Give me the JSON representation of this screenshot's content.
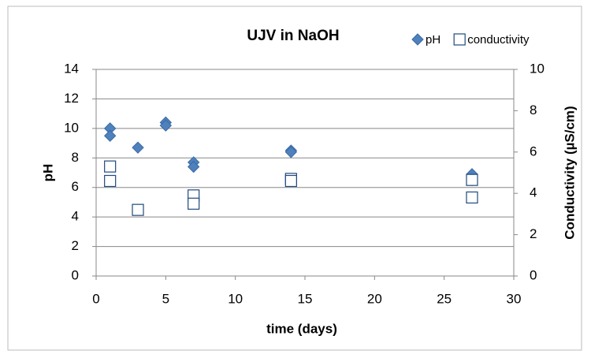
{
  "chart_data": {
    "type": "scatter",
    "title": "UJV in NaOH",
    "x_label": "time (days)",
    "y_label": "pH",
    "y2_label": "Conductivity (µS/cm)",
    "xlim": [
      0,
      30
    ],
    "xticks": [
      0,
      5,
      10,
      15,
      20,
      25,
      30
    ],
    "ylim": [
      0,
      14
    ],
    "yticks": [
      0,
      2,
      4,
      6,
      8,
      10,
      12,
      14
    ],
    "y2lim": [
      0,
      10
    ],
    "y2ticks": [
      0,
      2,
      4,
      6,
      8,
      10
    ],
    "grid": true,
    "legend": "top-right",
    "series": [
      {
        "name": "pH",
        "marker": "diamond",
        "color": "#4f81bd",
        "x": [
          1,
          1,
          3,
          5,
          5,
          7,
          7,
          14,
          14,
          27,
          27
        ],
        "values": [
          10.0,
          9.5,
          8.7,
          10.4,
          10.2,
          7.7,
          7.4,
          8.5,
          8.4,
          6.9,
          6.5
        ]
      },
      {
        "name": "conductivity",
        "marker": "square",
        "color": "#1f497d",
        "axis": "y2",
        "x": [
          1,
          1,
          3,
          7,
          7,
          14,
          14,
          27,
          27
        ],
        "values": [
          5.3,
          4.6,
          3.2,
          3.9,
          3.5,
          4.7,
          4.6,
          4.65,
          3.8
        ]
      }
    ]
  }
}
